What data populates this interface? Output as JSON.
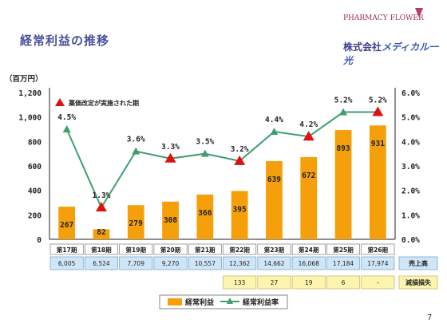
{
  "header": {
    "title": "経常利益の推移",
    "logo_top": "PHARMACY FLOWER",
    "logo_main_prefix": "株式会社",
    "logo_main_name": "メディカル一光"
  },
  "page_number": "7",
  "colors": {
    "bar": "#f5a00a",
    "line": "#3f9e70",
    "marker": "#e01010",
    "cell_blue": "#cfe6f8",
    "cell_yellow": "#fdf4b0"
  },
  "chart_data": {
    "type": "bar",
    "categories": [
      "第17期",
      "第18期",
      "第19期",
      "第20期",
      "第21期",
      "第22期",
      "第23期",
      "第24期",
      "第25期",
      "第26期"
    ],
    "left_axis_unit": "（百万円）",
    "left_ticks": [
      "0",
      "200",
      "400",
      "600",
      "800",
      "1,000",
      "1,200"
    ],
    "right_ticks": [
      "0.0%",
      "1.0%",
      "2.0%",
      "3.0%",
      "4.0%",
      "5.0%",
      "6.0%"
    ],
    "ylim": [
      0,
      1200
    ],
    "y2lim": [
      0,
      6
    ],
    "series": [
      {
        "name": "経常利益",
        "type": "bar",
        "values": [
          267,
          82,
          279,
          308,
          366,
          395,
          639,
          672,
          893,
          931
        ],
        "labels": [
          "267",
          "82",
          "279",
          "308",
          "366",
          "395",
          "639",
          "672",
          "893",
          "931"
        ]
      },
      {
        "name": "経常利益率",
        "type": "line",
        "values": [
          4.5,
          1.3,
          3.6,
          3.3,
          3.5,
          3.2,
          4.4,
          4.2,
          5.2,
          5.2
        ],
        "labels": [
          "4.5%",
          "1.3%",
          "3.6%",
          "3.3%",
          "3.5%",
          "3.2%",
          "4.4%",
          "4.2%",
          "5.2%",
          "5.2%"
        ]
      }
    ],
    "revision_marker_indices": [
      1,
      3,
      5,
      7,
      9
    ],
    "annotation": "薬価改定が実施された期",
    "legend_position": "bottom"
  },
  "table": {
    "sales_label": "売上高",
    "sales": [
      "6,005",
      "6,524",
      "7,709",
      "9,270",
      "10,557",
      "12,362",
      "14,662",
      "16,068",
      "17,184",
      "17,974"
    ],
    "impairment_label": "減損損失",
    "impairment": [
      "133",
      "27",
      "19",
      "6",
      "-"
    ]
  }
}
